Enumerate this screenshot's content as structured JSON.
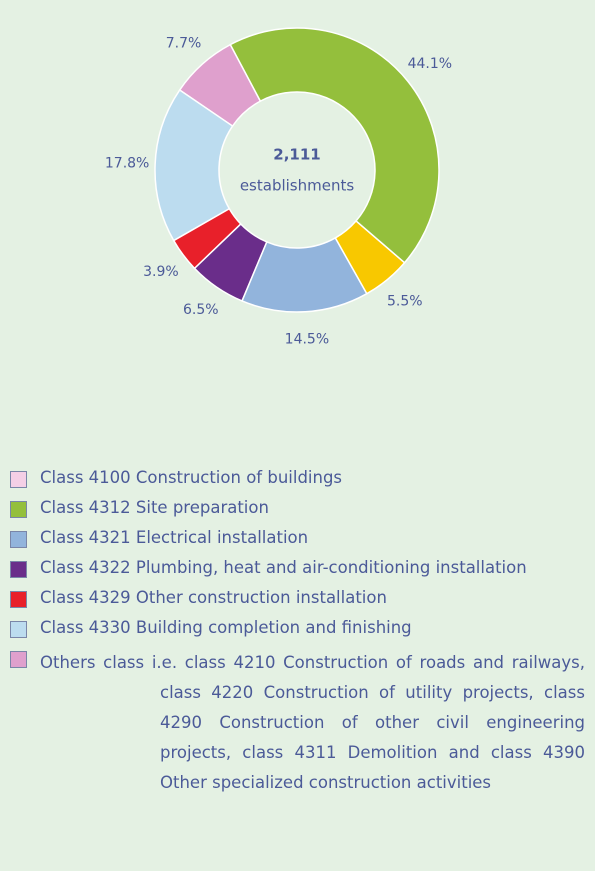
{
  "chart_data": {
    "type": "pie",
    "center_label": [
      "2,111",
      "establishments"
    ],
    "values": [
      44.1,
      5.5,
      14.5,
      6.5,
      3.9,
      17.8,
      7.7
    ],
    "value_labels": [
      "44.1%",
      "5.5%",
      "14.5%",
      "6.5%",
      "3.9%",
      "17.8%",
      "7.7%"
    ],
    "colors": [
      "#94bf3c",
      "#f8c800",
      "#92b4dc",
      "#6a2d8a",
      "#e8202a",
      "#bcdcef",
      "#dfa0cd"
    ],
    "legend": [
      {
        "name": "Class 4100 Construction of buildings",
        "color": "#f4cfe6"
      },
      {
        "name": "Class 4312 Site preparation",
        "color": "#94bf3c"
      },
      {
        "name": "Class 4321 Electrical installation",
        "color": "#92b4dc"
      },
      {
        "name": "Class 4322 Plumbing, heat and air-conditioning installation",
        "color": "#6a2d8a"
      },
      {
        "name": "Class 4329 Other construction installation",
        "color": "#e8202a"
      },
      {
        "name": "Class 4330 Building completion and finishing",
        "color": "#bcdcef"
      },
      {
        "name": "Others class i.e. class 4210 Construction of roads and railways, class 4220 Construction of utility projects, class 4290 Construction of other civil engineering projects, class 4311 Demolition and class 4390 Other specialized construction activities",
        "color": "#dfa0cd"
      }
    ]
  }
}
